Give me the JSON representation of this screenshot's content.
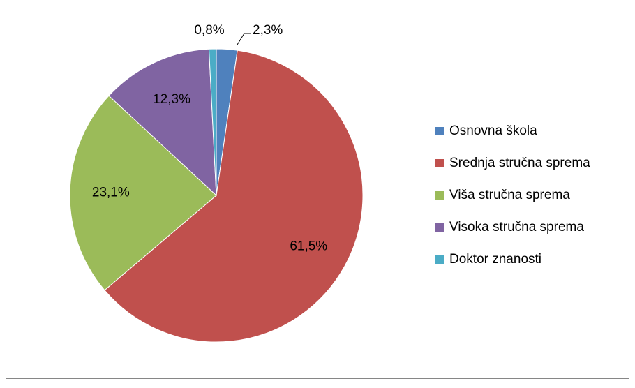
{
  "chart_data": {
    "type": "pie",
    "categories": [
      "Osnovna škola",
      "Srednja stručna sprema",
      "Viša stručna sprema",
      "Visoka stručna sprema",
      "Doktor znanosti"
    ],
    "values": [
      2.3,
      61.5,
      23.1,
      12.3,
      0.8
    ],
    "value_labels": [
      "2,3%",
      "61,5%",
      "23,1%",
      "12,3%",
      "0,8%"
    ],
    "colors": [
      "#4f81bd",
      "#c0504d",
      "#9bbb59",
      "#8064a2",
      "#4bacc6"
    ],
    "legend": "right"
  }
}
